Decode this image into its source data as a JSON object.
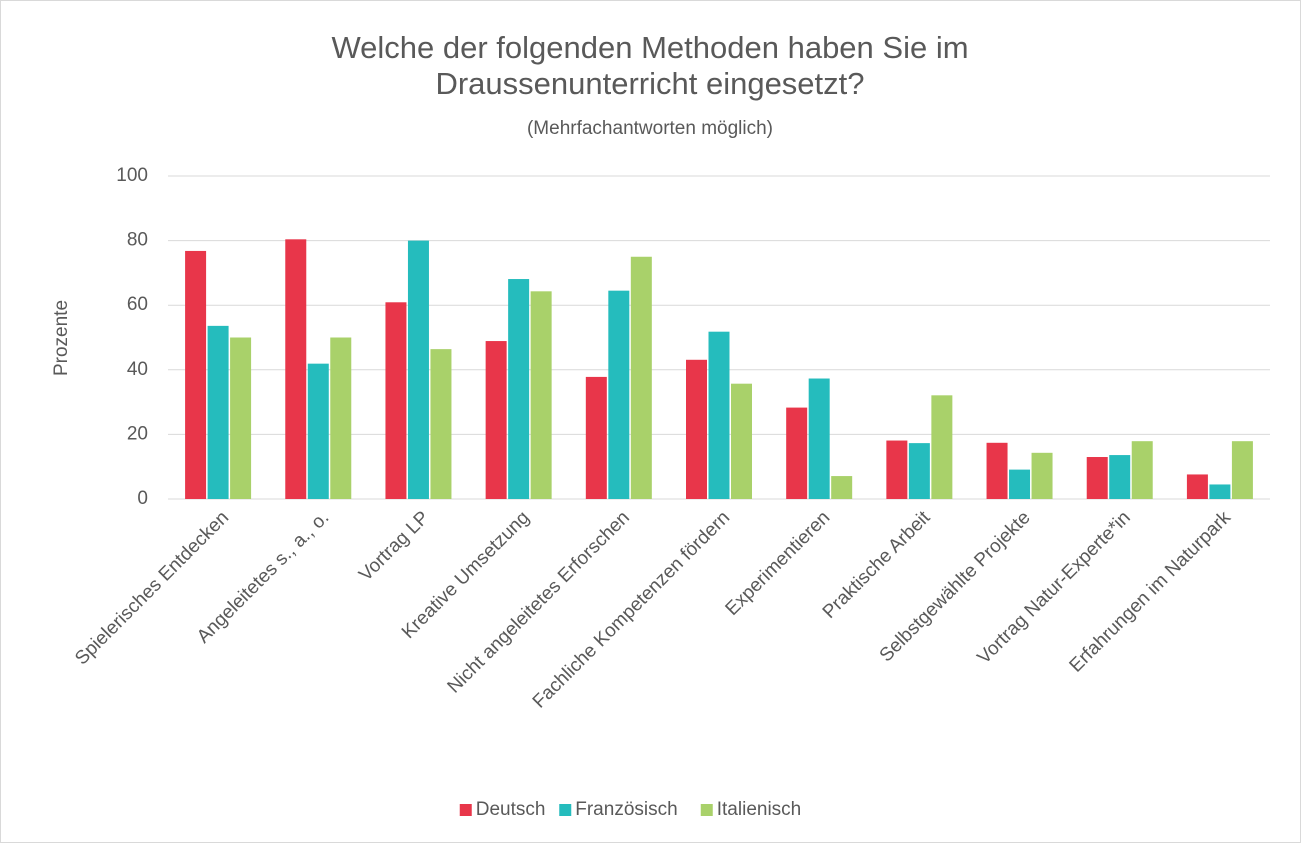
{
  "chart_data": {
    "type": "bar",
    "title": "Welche der folgenden Methoden haben Sie im Draussenunterricht eingesetzt?",
    "subtitle": "(Mehrfachantworten möglich)",
    "y_label": "Prozente",
    "categories": [
      "Spielerisches Entdecken",
      "Angeleitetes s., a., o.",
      "Vortrag LP",
      "Kreative Umsetzung",
      "Nicht angeleitetes Erforschen",
      "Fachliche Kompetenzen fördern",
      "Experimentieren",
      "Praktische Arbeit",
      "Selbstgewählte Projekte",
      "Vortrag Natur-Experte*in",
      "Erfahrungen im Naturpark"
    ],
    "series": [
      {
        "name": "Deutsch",
        "color": "#e8364a",
        "values": [
          76.8,
          80.4,
          60.9,
          48.9,
          37.8,
          43.1,
          28.3,
          18.1,
          17.4,
          13,
          7.6
        ]
      },
      {
        "name": "Französisch",
        "color": "#25bcbd",
        "values": [
          53.6,
          41.9,
          80,
          68.1,
          64.5,
          51.8,
          37.3,
          17.3,
          9.1,
          13.6,
          4.5
        ]
      },
      {
        "name": "Italienisch",
        "color": "#a9d16a",
        "values": [
          50,
          50,
          46.4,
          64.3,
          75,
          35.7,
          7.1,
          32.1,
          14.3,
          17.9,
          17.9
        ]
      }
    ],
    "ylim": [
      0,
      100
    ],
    "yticks": [
      0,
      20,
      40,
      60,
      80,
      100
    ],
    "grid": true,
    "legend": "bottom"
  }
}
